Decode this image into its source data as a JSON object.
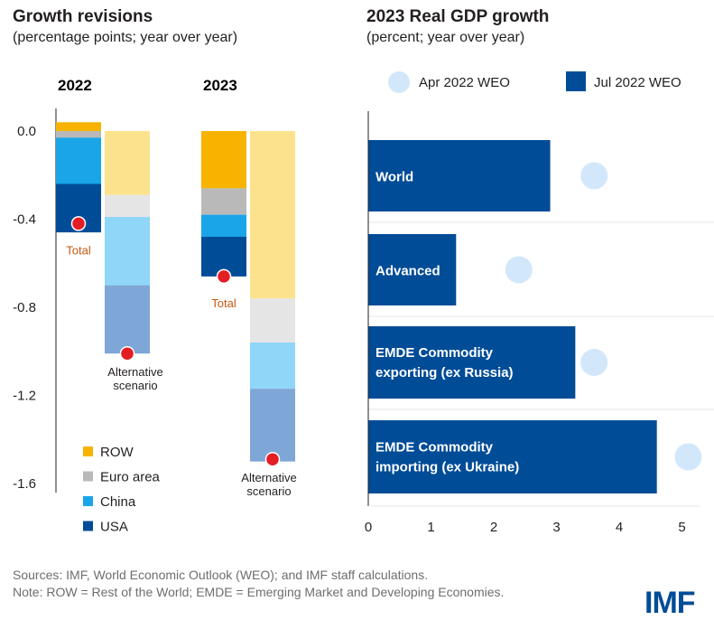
{
  "colors": {
    "row": "#f8b300",
    "row_light": "#fde28e",
    "euro": "#b9b9b9",
    "euro_light": "#e5e5e5",
    "china": "#19a5e8",
    "china_light": "#8fd6f8",
    "usa": "#004c97",
    "usa_light": "#7ea6d6",
    "marker": "#e31e24",
    "jul_bar": "#004c97",
    "apr_circle": "#d2e8fa"
  },
  "footer": {
    "sources": "Sources: IMF, World Economic Outlook (WEO); and IMF staff calculations.",
    "note": "Note: ROW = Rest of the World; EMDE = Emerging Market and Developing Economies.",
    "logo": "IMF"
  },
  "chart_data": [
    {
      "type": "bar",
      "stacked": true,
      "title": "Growth revisions",
      "subtitle": "(percentage points; year over year)",
      "group_labels": [
        "2022",
        "2023"
      ],
      "ylim": [
        -1.6,
        0.05
      ],
      "yticks": [
        "0.0",
        "-0.4",
        "-0.8",
        "-1.2",
        "-1.6"
      ],
      "ytick_values": [
        0,
        -0.4,
        -0.8,
        -1.2,
        -1.6
      ],
      "grid": false,
      "legend_position": "bottom-left",
      "legend": [
        "ROW",
        "Euro area",
        "China",
        "USA"
      ],
      "series_keys": [
        "row",
        "euro",
        "china",
        "usa"
      ],
      "bars": [
        {
          "group": "2022",
          "variant": "baseline",
          "segments": {
            "row": 0.04,
            "euro": -0.03,
            "china": -0.21,
            "usa": -0.22
          },
          "total": -0.42,
          "annotation": "Total"
        },
        {
          "group": "2022",
          "variant": "alternative",
          "segments": {
            "row": -0.29,
            "euro": -0.1,
            "china": -0.31,
            "usa": -0.31
          },
          "total": -1.01,
          "annotation_lines": [
            "Alternative",
            "scenario"
          ]
        },
        {
          "group": "2023",
          "variant": "baseline",
          "segments": {
            "row": -0.26,
            "euro": -0.12,
            "china": -0.1,
            "usa": -0.18
          },
          "total": -0.66,
          "annotation": "Total"
        },
        {
          "group": "2023",
          "variant": "alternative",
          "segments": {
            "row": -0.76,
            "euro": -0.2,
            "china": -0.21,
            "usa": -0.33
          },
          "total": -1.49,
          "annotation_lines": [
            "Alternative",
            "scenario"
          ]
        }
      ]
    },
    {
      "type": "bar",
      "orientation": "horizontal",
      "title": "2023 Real GDP growth",
      "subtitle": "(percent; year over year)",
      "xlim": [
        0,
        5.4
      ],
      "xticks": [
        0,
        1,
        2,
        3,
        4,
        5
      ],
      "grid": false,
      "legend_position": "top",
      "legend": [
        "Apr 2022 WEO",
        "Jul 2022 WEO"
      ],
      "categories": [
        [
          "World"
        ],
        [
          "Advanced"
        ],
        [
          "EMDE Commodity",
          "exporting (ex Russia)"
        ],
        [
          "EMDE Commodity",
          "importing (ex Ukraine)"
        ]
      ],
      "series": [
        {
          "name": "Jul 2022 WEO",
          "mark": "bar",
          "values": [
            2.9,
            1.4,
            3.3,
            4.6
          ]
        },
        {
          "name": "Apr 2022 WEO",
          "mark": "circle",
          "values": [
            3.6,
            2.4,
            3.6,
            5.1
          ]
        }
      ]
    }
  ]
}
